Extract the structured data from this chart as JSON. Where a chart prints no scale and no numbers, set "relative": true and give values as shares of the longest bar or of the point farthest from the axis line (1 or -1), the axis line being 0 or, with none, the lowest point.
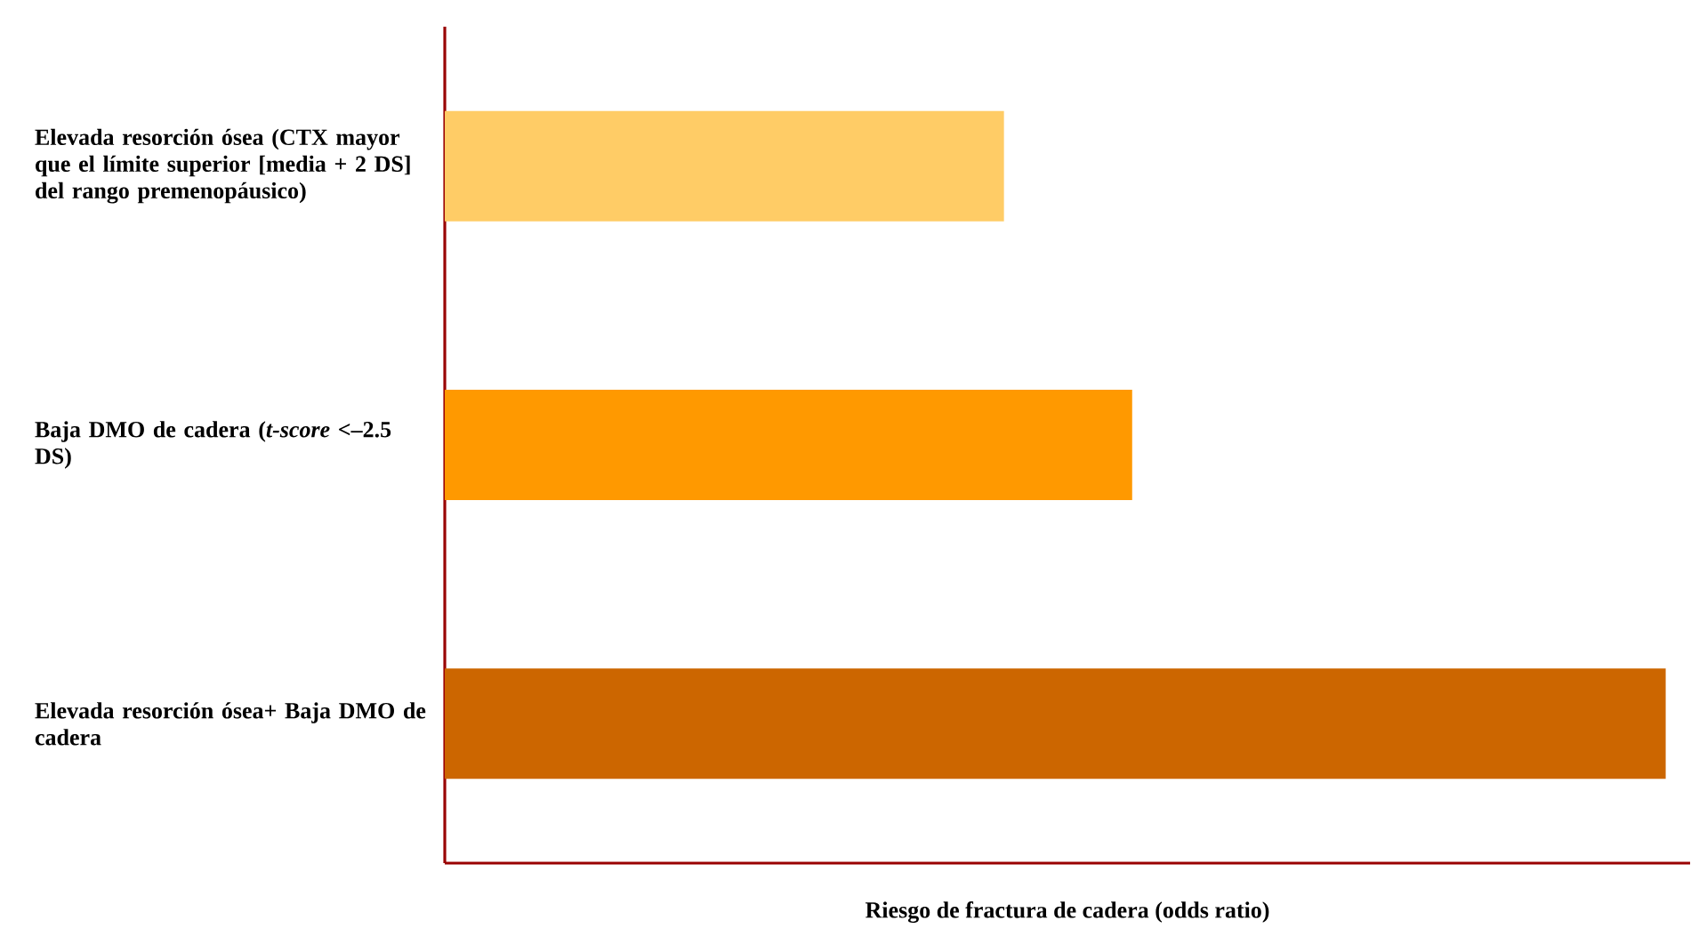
{
  "chart_data": {
    "type": "bar",
    "orientation": "horizontal",
    "relative": true,
    "categories": [
      "Elevada resorción ósea (CTX mayor que el  límite superior [media + 2 DS] del rango premenopáusico)",
      "Baja DMO de cadera (*t-score* <–2.5 DS)",
      "Elevada resorción ósea+ Baja DMO de cadera"
    ],
    "values": [
      0.458,
      0.563,
      1
    ],
    "colors": [
      "#ffcc66",
      "#ff9900",
      "#cc6600"
    ],
    "xlabel": "Riesgo de fractura de cadera (odds ratio)"
  }
}
